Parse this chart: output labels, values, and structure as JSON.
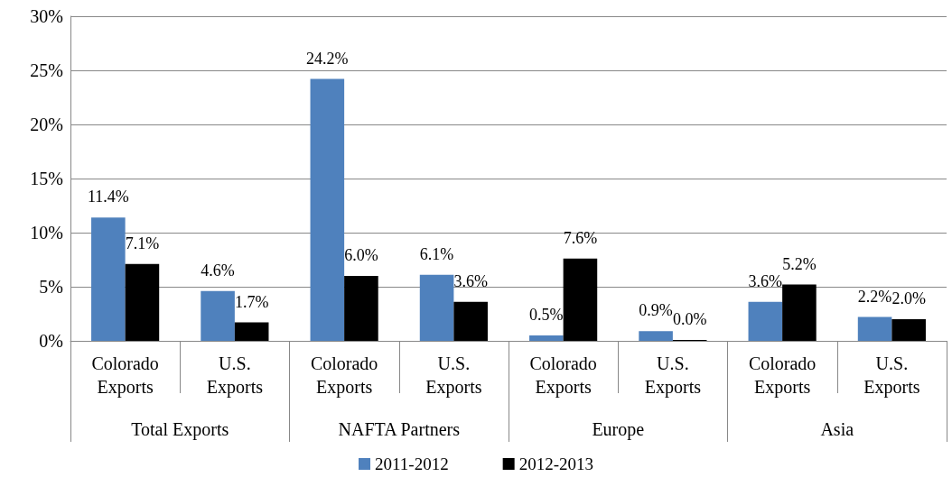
{
  "chart_data": {
    "type": "bar",
    "categories": [
      "Colorado\nExports",
      "U.S.\nExports",
      "Colorado\nExports",
      "U.S.\nExports",
      "Colorado\nExports",
      "U.S.\nExports",
      "Colorado\nExports",
      "U.S.\nExports"
    ],
    "annotations": [
      "Total Exports",
      "NAFTA Partners",
      "Europe",
      "Asia"
    ],
    "series": [
      {
        "name": "2011-2012",
        "color": "#4f81bd",
        "values": [
          11.4,
          4.6,
          24.2,
          6.1,
          0.5,
          0.9,
          3.6,
          2.2
        ],
        "value_labels": [
          "11.4%",
          "4.6%",
          "24.2%",
          "6.1%",
          "0.5%",
          "0.9%",
          "3.6%",
          "2.2%"
        ]
      },
      {
        "name": "2012-2013",
        "color": "#000000",
        "values": [
          7.1,
          1.7,
          6.0,
          3.6,
          7.6,
          0.0,
          5.2,
          2.0
        ],
        "value_labels": [
          "7.1%",
          "1.7%",
          "6.0%",
          "3.6%",
          "7.6%",
          "0.0%",
          "5.2%",
          "2.0%"
        ]
      }
    ],
    "ylim": [
      0,
      30
    ],
    "yticks": [
      {
        "value": 0,
        "label": "0%"
      },
      {
        "value": 5,
        "label": "5%"
      },
      {
        "value": 10,
        "label": "10%"
      },
      {
        "value": 15,
        "label": "15%"
      },
      {
        "value": 20,
        "label": "20%"
      },
      {
        "value": 25,
        "label": "25%"
      },
      {
        "value": 30,
        "label": "30%"
      }
    ],
    "grid": "y",
    "legend": "bottom"
  }
}
